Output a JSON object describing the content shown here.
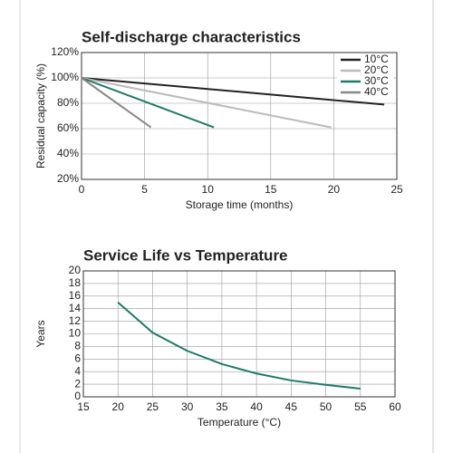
{
  "chart_data": [
    {
      "type": "line",
      "title": "Self-discharge characteristics",
      "xlabel": "Storage time (months)",
      "ylabel": "Residual capacity (%)",
      "xlim": [
        0,
        25
      ],
      "xticks": [
        0,
        5,
        10,
        15,
        20,
        25
      ],
      "ylim": [
        20,
        120
      ],
      "yticks": [
        {
          "value": 20,
          "label": "20%"
        },
        {
          "value": 40,
          "label": "40%"
        },
        {
          "value": 60,
          "label": "60%"
        },
        {
          "value": 80,
          "label": "80%"
        },
        {
          "value": 100,
          "label": "100%"
        },
        {
          "value": 120,
          "label": "120%"
        }
      ],
      "grid": true,
      "legend": "upper right",
      "series": [
        {
          "name": "10°C",
          "color": "#222222",
          "x": [
            0,
            24
          ],
          "values": [
            100,
            79
          ]
        },
        {
          "name": "20°C",
          "color": "#bbbbbb",
          "x": [
            0,
            19.8
          ],
          "values": [
            100,
            61
          ]
        },
        {
          "name": "30°C",
          "color": "#1f7a68",
          "x": [
            0,
            10.5
          ],
          "values": [
            100,
            61
          ]
        },
        {
          "name": "40°C",
          "color": "#888888",
          "x": [
            0,
            5.5
          ],
          "values": [
            100,
            61
          ]
        }
      ]
    },
    {
      "type": "line",
      "title": "Service Life vs Temperature",
      "xlabel": "Temperature (°C)",
      "ylabel": "Years",
      "xlim": [
        15,
        60
      ],
      "xticks": [
        15,
        20,
        25,
        30,
        35,
        40,
        45,
        50,
        55,
        60
      ],
      "ylim": [
        0,
        20
      ],
      "yticks": [
        0,
        2,
        4,
        6,
        8,
        10,
        12,
        14,
        16,
        18,
        20
      ],
      "grid": true,
      "color": "#1f7a68",
      "x": [
        20,
        25,
        30,
        35,
        40,
        45,
        50,
        55
      ],
      "values": [
        15,
        10.2,
        7.3,
        5.2,
        3.7,
        2.6,
        1.9,
        1.3
      ]
    }
  ]
}
